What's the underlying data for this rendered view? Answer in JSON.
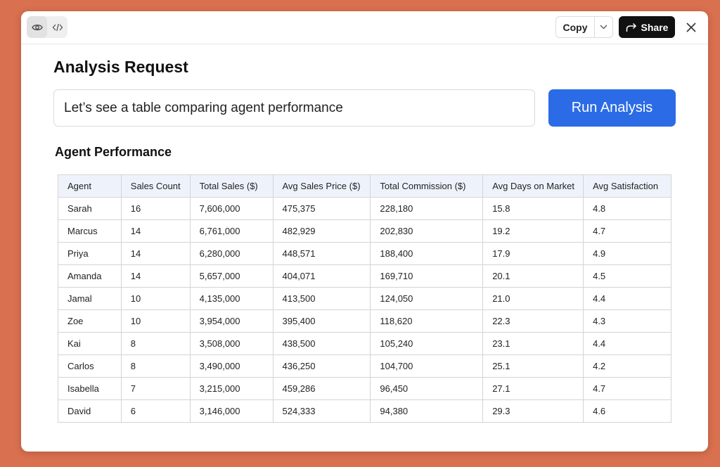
{
  "toolbar": {
    "view_toggle": [
      "eye-icon",
      "code-icon"
    ],
    "copy_label": "Copy",
    "share_label": "Share"
  },
  "page": {
    "title": "Analysis Request"
  },
  "query": {
    "value": "Let’s see a table comparing agent performance"
  },
  "run_button": {
    "label": "Run Analysis",
    "color": "#2b6be6"
  },
  "table": {
    "title": "Agent Performance",
    "headers": [
      "Agent",
      "Sales Count",
      "Total Sales ($)",
      "Avg Sales Price ($)",
      "Total Commission ($)",
      "Avg Days on Market",
      "Avg Satisfaction"
    ],
    "rows": [
      [
        "Sarah",
        "16",
        "7,606,000",
        "475,375",
        "228,180",
        "15.8",
        "4.8"
      ],
      [
        "Marcus",
        "14",
        "6,761,000",
        "482,929",
        "202,830",
        "19.2",
        "4.7"
      ],
      [
        "Priya",
        "14",
        "6,280,000",
        "448,571",
        "188,400",
        "17.9",
        "4.9"
      ],
      [
        "Amanda",
        "14",
        "5,657,000",
        "404,071",
        "169,710",
        "20.1",
        "4.5"
      ],
      [
        "Jamal",
        "10",
        "4,135,000",
        "413,500",
        "124,050",
        "21.0",
        "4.4"
      ],
      [
        "Zoe",
        "10",
        "3,954,000",
        "395,400",
        "118,620",
        "22.3",
        "4.3"
      ],
      [
        "Kai",
        "8",
        "3,508,000",
        "438,500",
        "105,240",
        "23.1",
        "4.4"
      ],
      [
        "Carlos",
        "8",
        "3,490,000",
        "436,250",
        "104,700",
        "25.1",
        "4.2"
      ],
      [
        "Isabella",
        "7",
        "3,215,000",
        "459,286",
        "96,450",
        "27.1",
        "4.7"
      ],
      [
        "David",
        "6",
        "3,146,000",
        "524,333",
        "94,380",
        "29.3",
        "4.6"
      ]
    ]
  }
}
